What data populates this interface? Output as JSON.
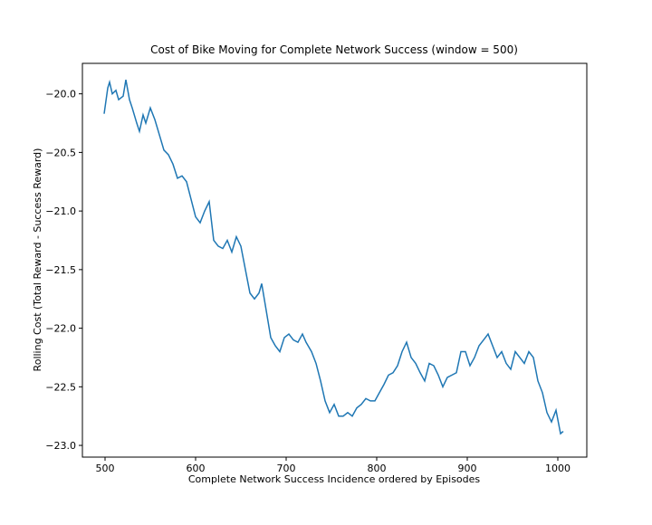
{
  "chart_data": {
    "type": "line",
    "title": "Cost of Bike Moving for Complete Network Success (window = 500)",
    "x_label": "Complete Network Success Incidence ordered by Episodes",
    "y_label": "Rolling Cost (Total Reward - Success Reward)",
    "x": [
      499,
      503,
      505,
      508,
      512,
      515,
      520,
      523,
      527,
      530,
      535,
      538,
      542,
      545,
      550,
      555,
      560,
      565,
      570,
      575,
      580,
      585,
      590,
      595,
      600,
      605,
      610,
      615,
      620,
      625,
      630,
      635,
      640,
      645,
      650,
      655,
      660,
      665,
      670,
      673,
      678,
      683,
      688,
      693,
      698,
      703,
      708,
      713,
      718,
      722,
      728,
      733,
      738,
      743,
      748,
      753,
      758,
      763,
      768,
      773,
      778,
      783,
      788,
      793,
      798,
      803,
      808,
      813,
      818,
      823,
      828,
      833,
      838,
      843,
      848,
      853,
      858,
      863,
      868,
      873,
      878,
      883,
      888,
      893,
      898,
      903,
      908,
      913,
      918,
      923,
      928,
      933,
      938,
      943,
      948,
      953,
      958,
      963,
      968,
      973,
      978,
      983,
      988,
      993,
      998,
      1003,
      1006
    ],
    "series": [
      {
        "name": "rolling cost",
        "color": "#1f77b4",
        "values": [
          -20.17,
          -19.95,
          -19.9,
          -20.0,
          -19.97,
          -20.05,
          -20.02,
          -19.88,
          -20.05,
          -20.12,
          -20.25,
          -20.32,
          -20.18,
          -20.25,
          -20.12,
          -20.22,
          -20.35,
          -20.48,
          -20.52,
          -20.6,
          -20.72,
          -20.7,
          -20.75,
          -20.9,
          -21.05,
          -21.1,
          -21.0,
          -20.92,
          -21.25,
          -21.3,
          -21.32,
          -21.25,
          -21.35,
          -21.22,
          -21.3,
          -21.5,
          -21.7,
          -21.75,
          -21.7,
          -21.62,
          -21.85,
          -22.08,
          -22.15,
          -22.2,
          -22.08,
          -22.05,
          -22.1,
          -22.12,
          -22.05,
          -22.12,
          -22.2,
          -22.3,
          -22.45,
          -22.62,
          -22.72,
          -22.65,
          -22.75,
          -22.75,
          -22.72,
          -22.75,
          -22.68,
          -22.65,
          -22.6,
          -22.62,
          -22.62,
          -22.55,
          -22.48,
          -22.4,
          -22.38,
          -22.32,
          -22.2,
          -22.12,
          -22.25,
          -22.3,
          -22.38,
          -22.45,
          -22.3,
          -22.32,
          -22.4,
          -22.5,
          -22.42,
          -22.4,
          -22.38,
          -22.2,
          -22.2,
          -22.32,
          -22.25,
          -22.15,
          -22.1,
          -22.05,
          -22.15,
          -22.25,
          -22.2,
          -22.3,
          -22.35,
          -22.2,
          -22.25,
          -22.3,
          -22.2,
          -22.25,
          -22.45,
          -22.55,
          -22.72,
          -22.8,
          -22.7,
          -22.9,
          -22.88
        ]
      }
    ],
    "xlim": [
      475,
      1032
    ],
    "ylim": [
      -23.1,
      -19.74
    ],
    "xticks": [
      500,
      600,
      700,
      800,
      900,
      1000
    ],
    "yticks": [
      {
        "value": -20.0,
        "label": "−20.0"
      },
      {
        "value": -20.5,
        "label": "−20.5"
      },
      {
        "value": -21.0,
        "label": "−21.0"
      },
      {
        "value": -21.5,
        "label": "−21.5"
      },
      {
        "value": -22.0,
        "label": "−22.0"
      },
      {
        "value": -22.5,
        "label": "−22.5"
      },
      {
        "value": -23.0,
        "label": "−23.0"
      }
    ],
    "grid": false
  }
}
